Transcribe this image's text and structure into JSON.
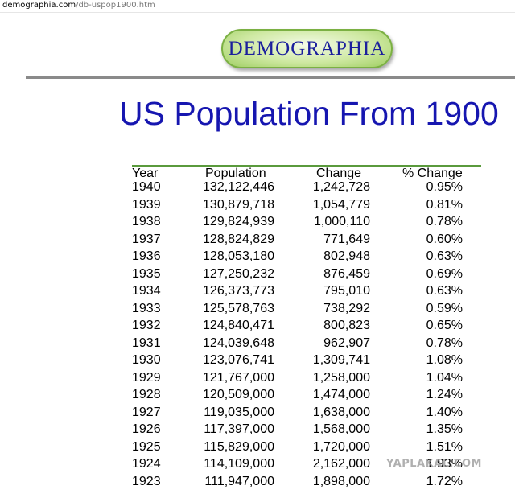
{
  "browser": {
    "url_host": "demographia.com",
    "url_path": "/db-uspop1900.htm"
  },
  "logo": {
    "text": "DEMOGRAPHIA"
  },
  "page": {
    "title": "US Population From 1900"
  },
  "table": {
    "headers": [
      "Year",
      "Population",
      "Change",
      "% Change"
    ],
    "rows": [
      [
        "1940",
        "132,122,446",
        "1,242,728",
        "0.95%"
      ],
      [
        "1939",
        "130,879,718",
        "1,054,779",
        "0.81%"
      ],
      [
        "1938",
        "129,824,939",
        "1,000,110",
        "0.78%"
      ],
      [
        "1937",
        "128,824,829",
        "771,649",
        "0.60%"
      ],
      [
        "1936",
        "128,053,180",
        "802,948",
        "0.63%"
      ],
      [
        "1935",
        "127,250,232",
        "876,459",
        "0.69%"
      ],
      [
        "1934",
        "126,373,773",
        "795,010",
        "0.63%"
      ],
      [
        "1933",
        "125,578,763",
        "738,292",
        "0.59%"
      ],
      [
        "1932",
        "124,840,471",
        "800,823",
        "0.65%"
      ],
      [
        "1931",
        "124,039,648",
        "962,907",
        "0.78%"
      ],
      [
        "1930",
        "123,076,741",
        "1,309,741",
        "1.08%"
      ],
      [
        "1929",
        "121,767,000",
        "1,258,000",
        "1.04%"
      ],
      [
        "1928",
        "120,509,000",
        "1,474,000",
        "1.24%"
      ],
      [
        "1927",
        "119,035,000",
        "1,638,000",
        "1.40%"
      ],
      [
        "1926",
        "117,397,000",
        "1,568,000",
        "1.35%"
      ],
      [
        "1925",
        "115,829,000",
        "1,720,000",
        "1.51%"
      ],
      [
        "1924",
        "114,109,000",
        "2,162,000",
        "1.93%"
      ],
      [
        "1923",
        "111,947,000",
        "1,898,000",
        "1.72%"
      ]
    ]
  },
  "watermark": {
    "text": "YAPLAKAL.COM"
  },
  "colors": {
    "title": "#1616b0",
    "logo_text": "#1b1f9c",
    "logo_fill": "#cfe9a3",
    "header_rule": "#5a9a3c"
  }
}
